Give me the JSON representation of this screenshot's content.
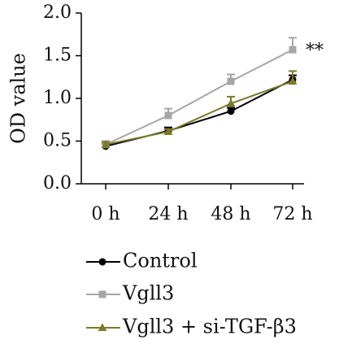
{
  "chart_data": {
    "type": "line",
    "categories": [
      "0 h",
      "24 h",
      "48 h",
      "72 h"
    ],
    "ylabel": "OD value",
    "xlabel": "",
    "ylim": [
      0.0,
      2.0
    ],
    "yticks": [
      "0.0",
      "0.5",
      "1.0",
      "1.5",
      "2.0"
    ],
    "grid": false,
    "legend_position": "bottom",
    "series": [
      {
        "name": "Control",
        "values": [
          0.44,
          0.62,
          0.85,
          1.22
        ],
        "errors": [
          0.03,
          0.04,
          0.04,
          0.05
        ],
        "color": "#000000",
        "marker": "circle"
      },
      {
        "name": "Vgll3",
        "values": [
          0.46,
          0.8,
          1.2,
          1.57
        ],
        "errors": [
          0.04,
          0.08,
          0.08,
          0.14
        ],
        "color": "#a6a6a6",
        "marker": "square"
      },
      {
        "name": "Vgll3 + si-TGF-β3",
        "values": [
          0.46,
          0.61,
          0.94,
          1.2
        ],
        "errors": [
          0.03,
          0.03,
          0.08,
          0.12
        ],
        "color": "#7a7a2a",
        "marker": "triangle"
      }
    ],
    "annotations": [
      {
        "text": "**",
        "category": "72 h",
        "series": "Vgll3"
      }
    ]
  }
}
